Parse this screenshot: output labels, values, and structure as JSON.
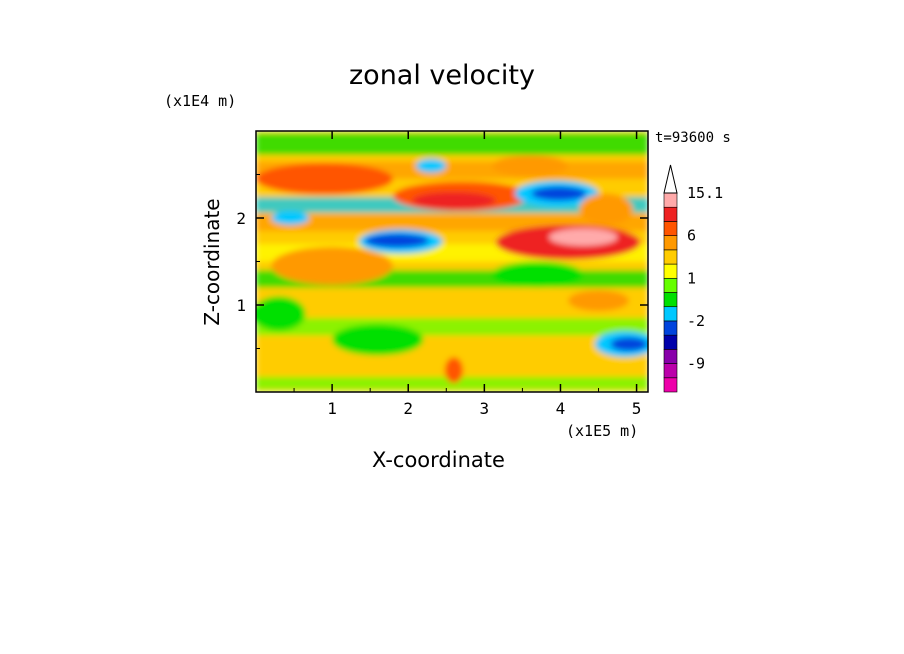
{
  "chart_data": {
    "type": "heatmap",
    "title": "zonal velocity",
    "xlabel": "X-coordinate",
    "ylabel": "Z-coordinate",
    "x_unit": "(x1E5 m)",
    "y_unit": "(x1E4 m)",
    "time_label": "t=93600 s",
    "xlim": [
      0,
      5.15
    ],
    "ylim": [
      0,
      3.0
    ],
    "x_ticks": [
      1,
      2,
      3,
      4,
      5
    ],
    "y_ticks": [
      1,
      2
    ],
    "colorbar": {
      "labels": [
        "15.1",
        "6",
        "1",
        "-2",
        "-9"
      ],
      "label_values": [
        15.1,
        6,
        1,
        -2,
        -9
      ],
      "levels": [
        -15,
        -12,
        -9,
        -6,
        -3,
        -2,
        -1,
        0,
        1,
        2,
        3,
        6,
        9,
        12,
        15.1
      ],
      "colors": [
        "#ee00aa",
        "#bb00aa",
        "#8800aa",
        "#0000aa",
        "#0044dd",
        "#00c8ff",
        "#00e000",
        "#66ff00",
        "#ffff00",
        "#ffcc00",
        "#ff9900",
        "#ff5500",
        "#ee2222",
        "#ffaaaa",
        "#ffffff"
      ]
    },
    "field_features": [
      {
        "label": "negative jet",
        "x": 1.9,
        "z": 1.75,
        "value": -6
      },
      {
        "label": "negative jet",
        "x": 4.0,
        "z": 2.25,
        "value": -6
      },
      {
        "label": "negative jet",
        "x": 4.9,
        "z": 0.55,
        "value": -6
      },
      {
        "label": "positive band",
        "x": 2.7,
        "z": 2.2,
        "value": 3
      },
      {
        "label": "positive band",
        "x": 4.1,
        "z": 1.75,
        "value": 6
      },
      {
        "label": "positive band",
        "x": 1.0,
        "z": 1.45,
        "value": 2
      },
      {
        "label": "positive band",
        "x": 3.0,
        "z": 0.4,
        "value": 1
      }
    ]
  }
}
